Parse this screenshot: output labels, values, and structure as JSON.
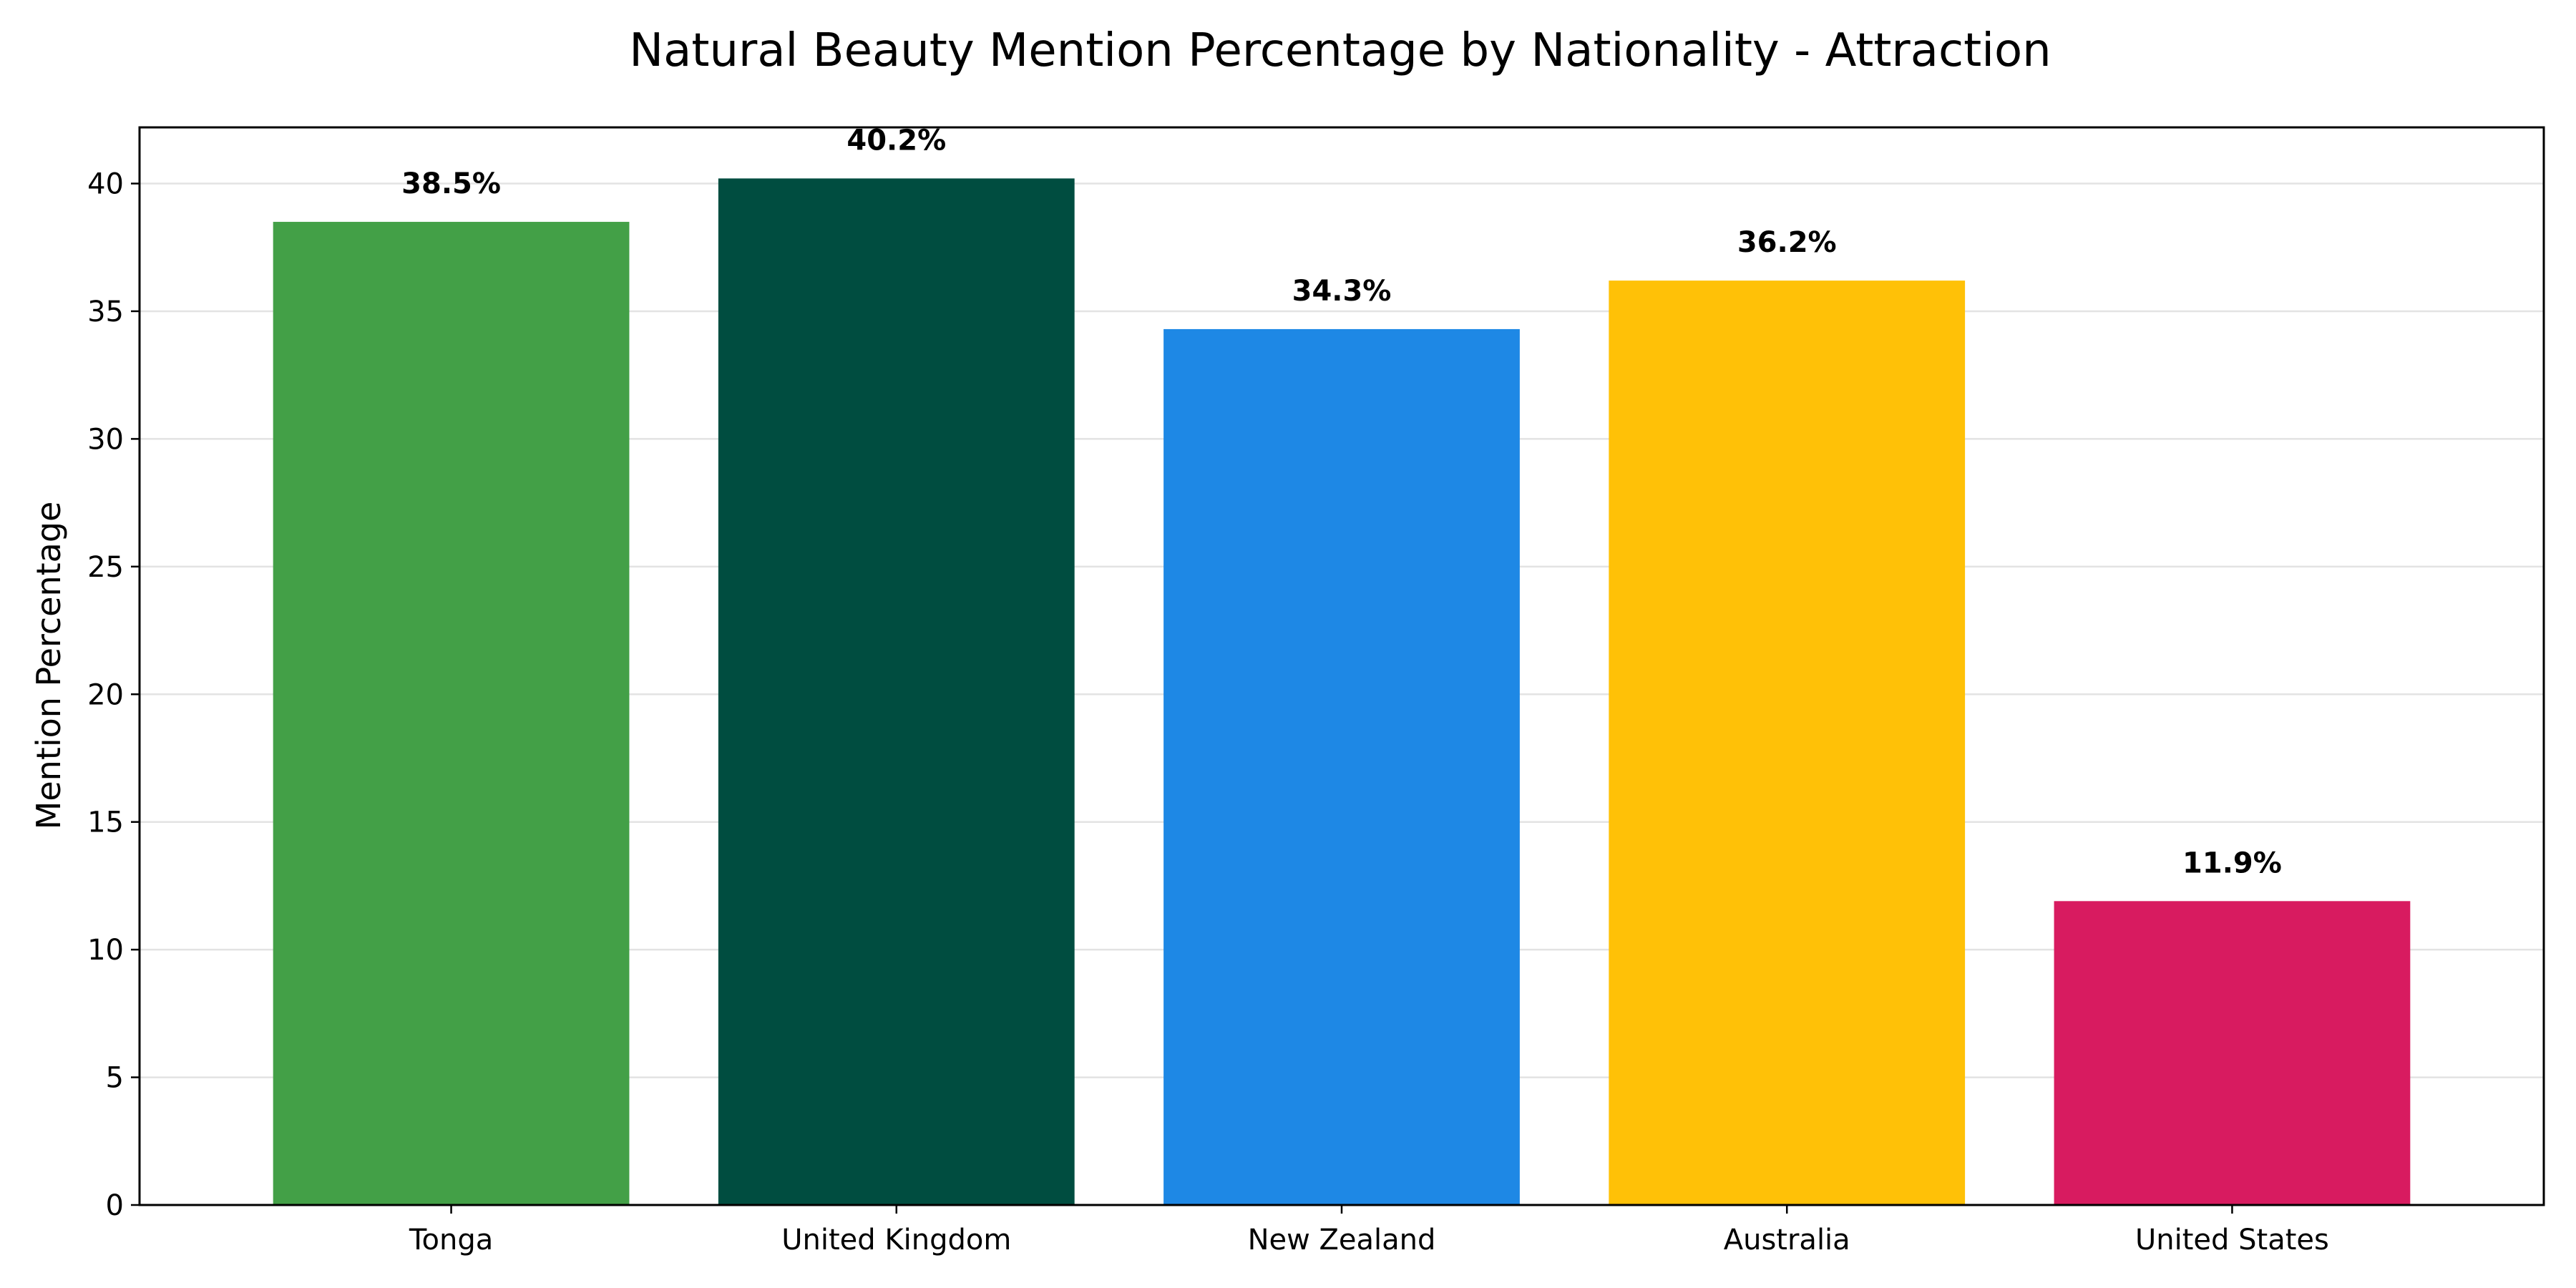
{
  "chart_data": {
    "type": "bar",
    "title": "Natural Beauty Mention Percentage by Nationality - Attraction",
    "xlabel": "",
    "ylabel": "Mention Percentage",
    "categories": [
      "Tonga",
      "United Kingdom",
      "New Zealand",
      "Australia",
      "United States"
    ],
    "values": [
      38.5,
      40.2,
      34.3,
      36.2,
      11.9
    ],
    "data_labels": [
      "38.5%",
      "40.2%",
      "34.3%",
      "36.2%",
      "11.9%"
    ],
    "colors": [
      "#43a047",
      "#004d40",
      "#1e88e5",
      "#ffc107",
      "#d81b60"
    ],
    "ylim": [
      0,
      42.2
    ],
    "yticks": [
      0,
      5,
      10,
      15,
      20,
      25,
      30,
      35,
      40
    ],
    "grid": "y",
    "legend": "none"
  }
}
